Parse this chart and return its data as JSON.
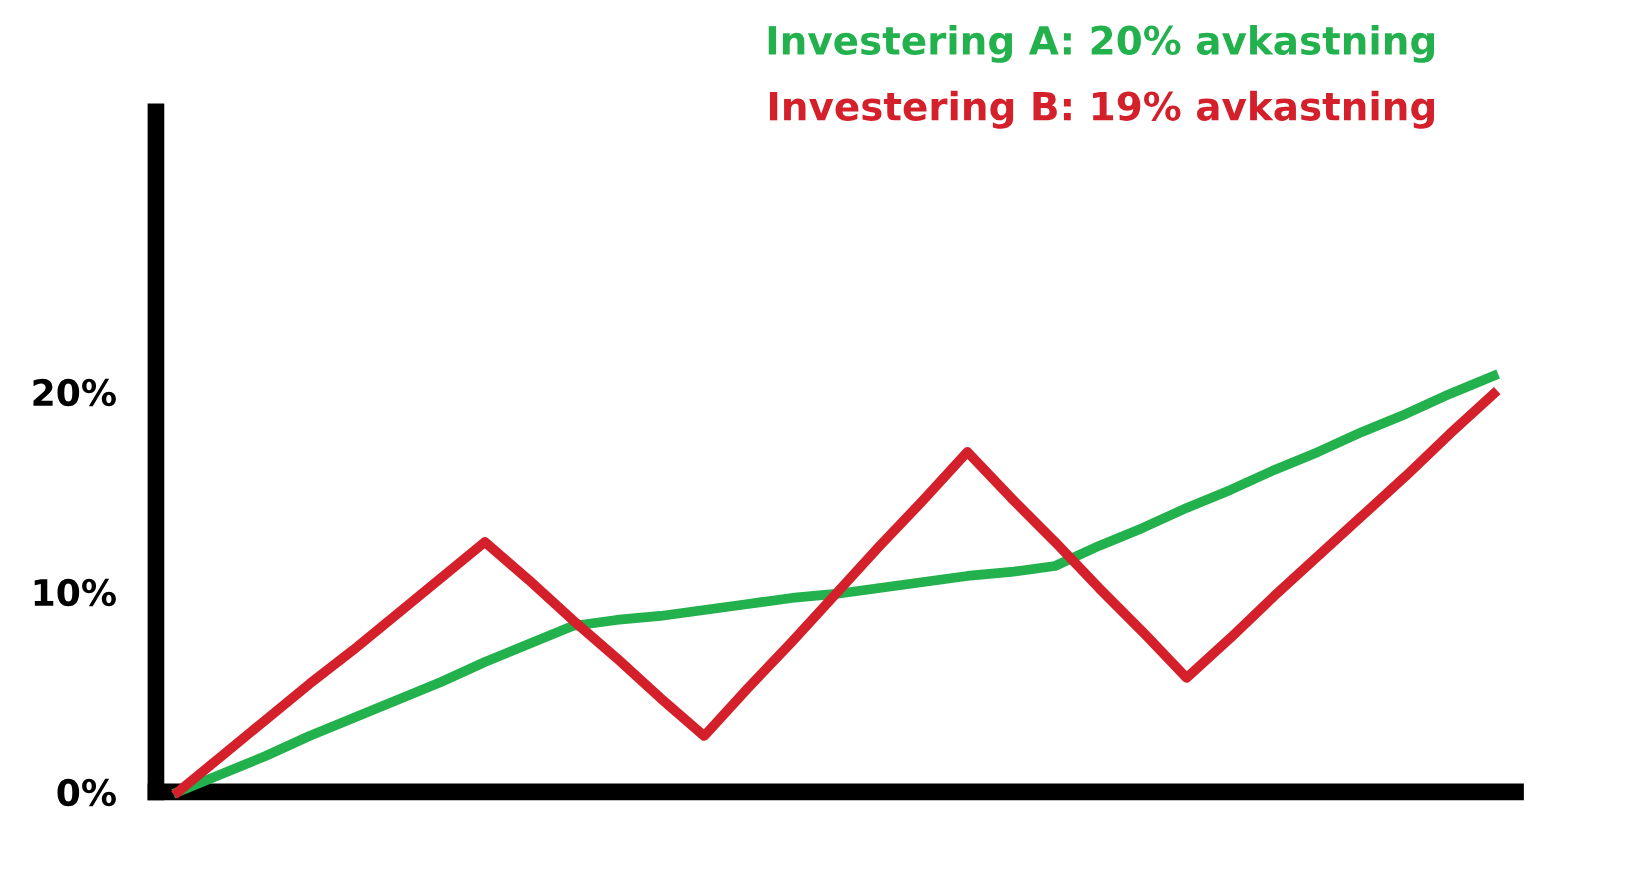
{
  "chart_data": {
    "type": "line",
    "categories": [
      null,
      null,
      null,
      null,
      null,
      null,
      null,
      null,
      null,
      null,
      null,
      null,
      null,
      null,
      null,
      null,
      null,
      null,
      null,
      null,
      null,
      null,
      null,
      null,
      null,
      null,
      null,
      null,
      null,
      null,
      null
    ],
    "series": [
      {
        "name": "Investering A: 20% avkastning",
        "color": "#22b14c",
        "values": [
          0,
          0.9,
          1.8,
          2.8,
          3.7,
          4.6,
          5.5,
          6.5,
          7.4,
          8.3,
          8.6,
          8.8,
          9.1,
          9.4,
          9.7,
          9.9,
          10.2,
          10.5,
          10.8,
          11.0,
          11.3,
          12.3,
          13.2,
          14.2,
          15.1,
          16.1,
          17.0,
          18.0,
          18.9,
          19.9,
          20.8
        ]
      },
      {
        "name": "Investering B: 19% avkastning",
        "color": "#d3202a",
        "values": [
          0,
          1.8,
          3.6,
          5.4,
          7.1,
          8.9,
          10.7,
          12.5,
          10.6,
          8.6,
          6.7,
          4.7,
          2.8,
          5.2,
          7.5,
          9.9,
          12.3,
          14.6,
          17,
          14.7,
          12.5,
          10.2,
          8.0,
          5.7,
          7.7,
          9.8,
          11.8,
          13.8,
          15.8,
          17.9,
          19.9
        ]
      }
    ],
    "ylim": [
      0,
      34
    ],
    "yticks": [
      {
        "value": 0,
        "label": "0%"
      },
      {
        "value": 10,
        "label": "10%"
      },
      {
        "value": 20,
        "label": "20%"
      }
    ],
    "tick_labels": "y",
    "grid": false,
    "marker": "none",
    "line_style": "solid"
  }
}
